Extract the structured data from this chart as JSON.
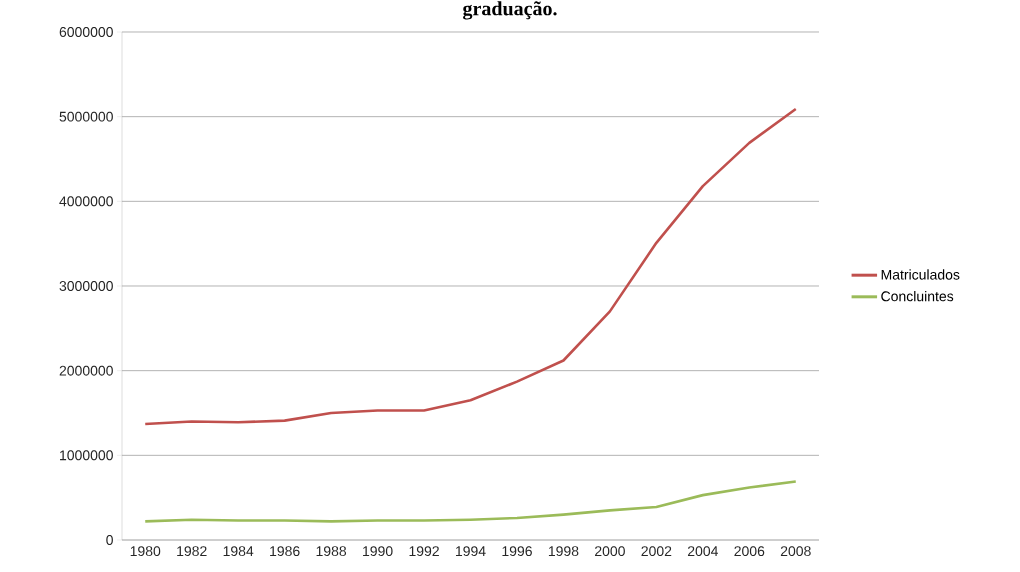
{
  "chart_data": {
    "type": "line",
    "title": "graduação.",
    "categories": [
      "1980",
      "1982",
      "1984",
      "1986",
      "1988",
      "1990",
      "1992",
      "1994",
      "1996",
      "1998",
      "2000",
      "2002",
      "2004",
      "2006",
      "2008"
    ],
    "series": [
      {
        "name": "Matriculados",
        "color": "#c0504d",
        "values": [
          1370000,
          1400000,
          1390000,
          1410000,
          1500000,
          1530000,
          1530000,
          1650000,
          1870000,
          2120000,
          2700000,
          3510000,
          4180000,
          4690000,
          5090000
        ]
      },
      {
        "name": "Concluintes",
        "color": "#9bbb59",
        "values": [
          220000,
          240000,
          230000,
          230000,
          220000,
          230000,
          230000,
          240000,
          260000,
          300000,
          350000,
          390000,
          530000,
          620000,
          690000
        ]
      }
    ],
    "ylim": [
      0,
      6000000
    ],
    "yticks": [
      0,
      1000000,
      2000000,
      3000000,
      4000000,
      5000000,
      6000000
    ],
    "grid": "y",
    "legend": "right"
  }
}
